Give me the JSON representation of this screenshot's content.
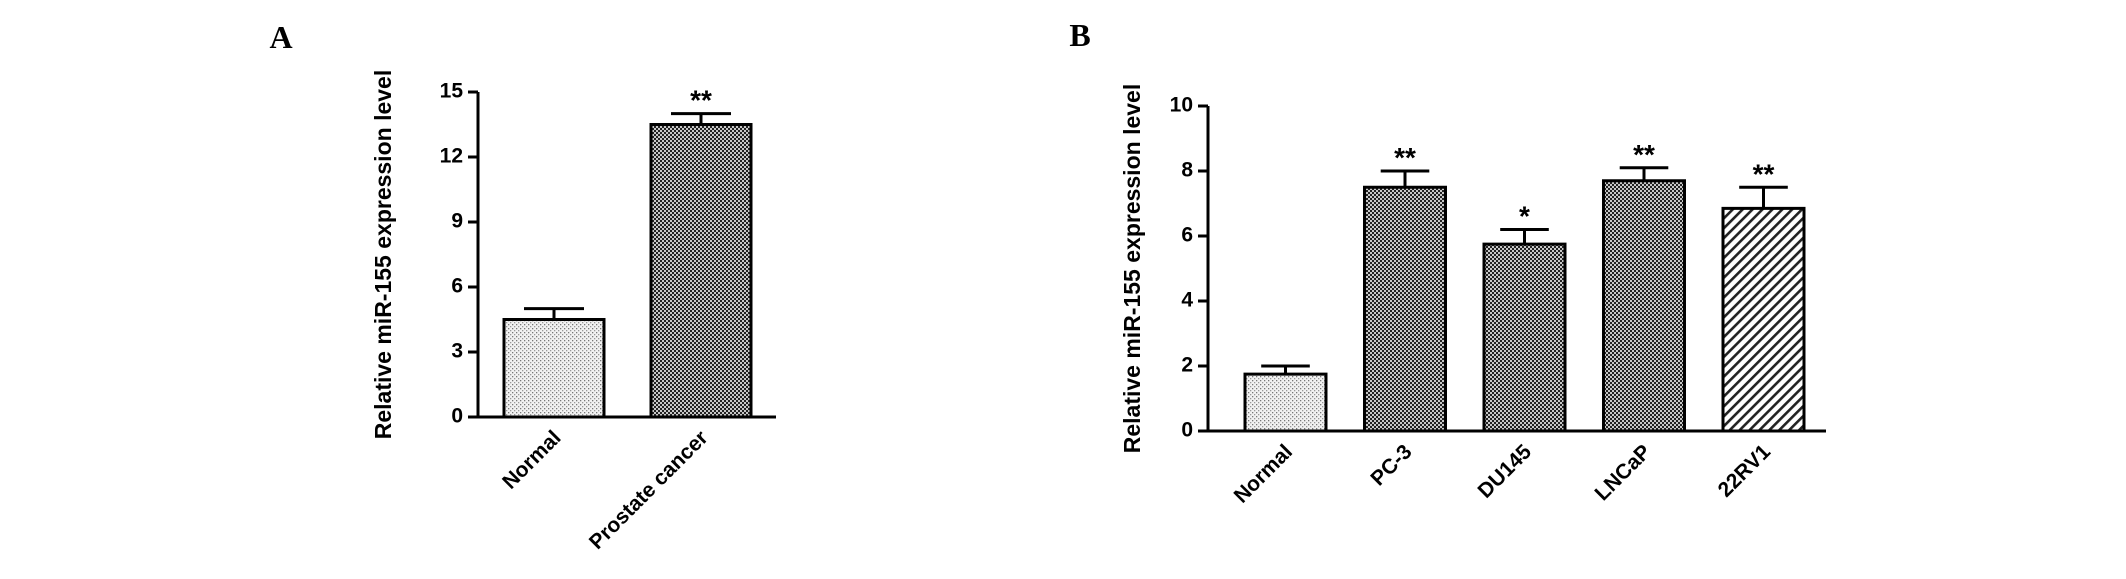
{
  "chart_data": [
    {
      "type": "bar",
      "panel": "A",
      "ylabel": "Relative miR-155 expression level",
      "categories": [
        "Normal",
        "Prostate cancer"
      ],
      "values": [
        4.5,
        13.5
      ],
      "errors": [
        0.5,
        0.5
      ],
      "annotations": [
        null,
        "**"
      ],
      "patterns": [
        "dots",
        "checker"
      ],
      "ylim": [
        0,
        15
      ],
      "yticks": [
        0,
        3,
        6,
        9,
        12,
        15
      ]
    },
    {
      "type": "bar",
      "panel": "B",
      "ylabel": "Relative miR-155 expression level",
      "categories": [
        "Normal",
        "PC-3",
        "DU145",
        "LNCaP",
        "22RV1"
      ],
      "values": [
        1.75,
        7.5,
        5.75,
        7.7,
        6.85
      ],
      "errors": [
        0.25,
        0.5,
        0.45,
        0.4,
        0.65
      ],
      "annotations": [
        null,
        "**",
        "*",
        "**",
        "**"
      ],
      "patterns": [
        "dots",
        "checker",
        "checker",
        "checker",
        "hatch"
      ],
      "ylim": [
        0,
        10
      ],
      "yticks": [
        0,
        2,
        4,
        6,
        8,
        10
      ]
    }
  ]
}
